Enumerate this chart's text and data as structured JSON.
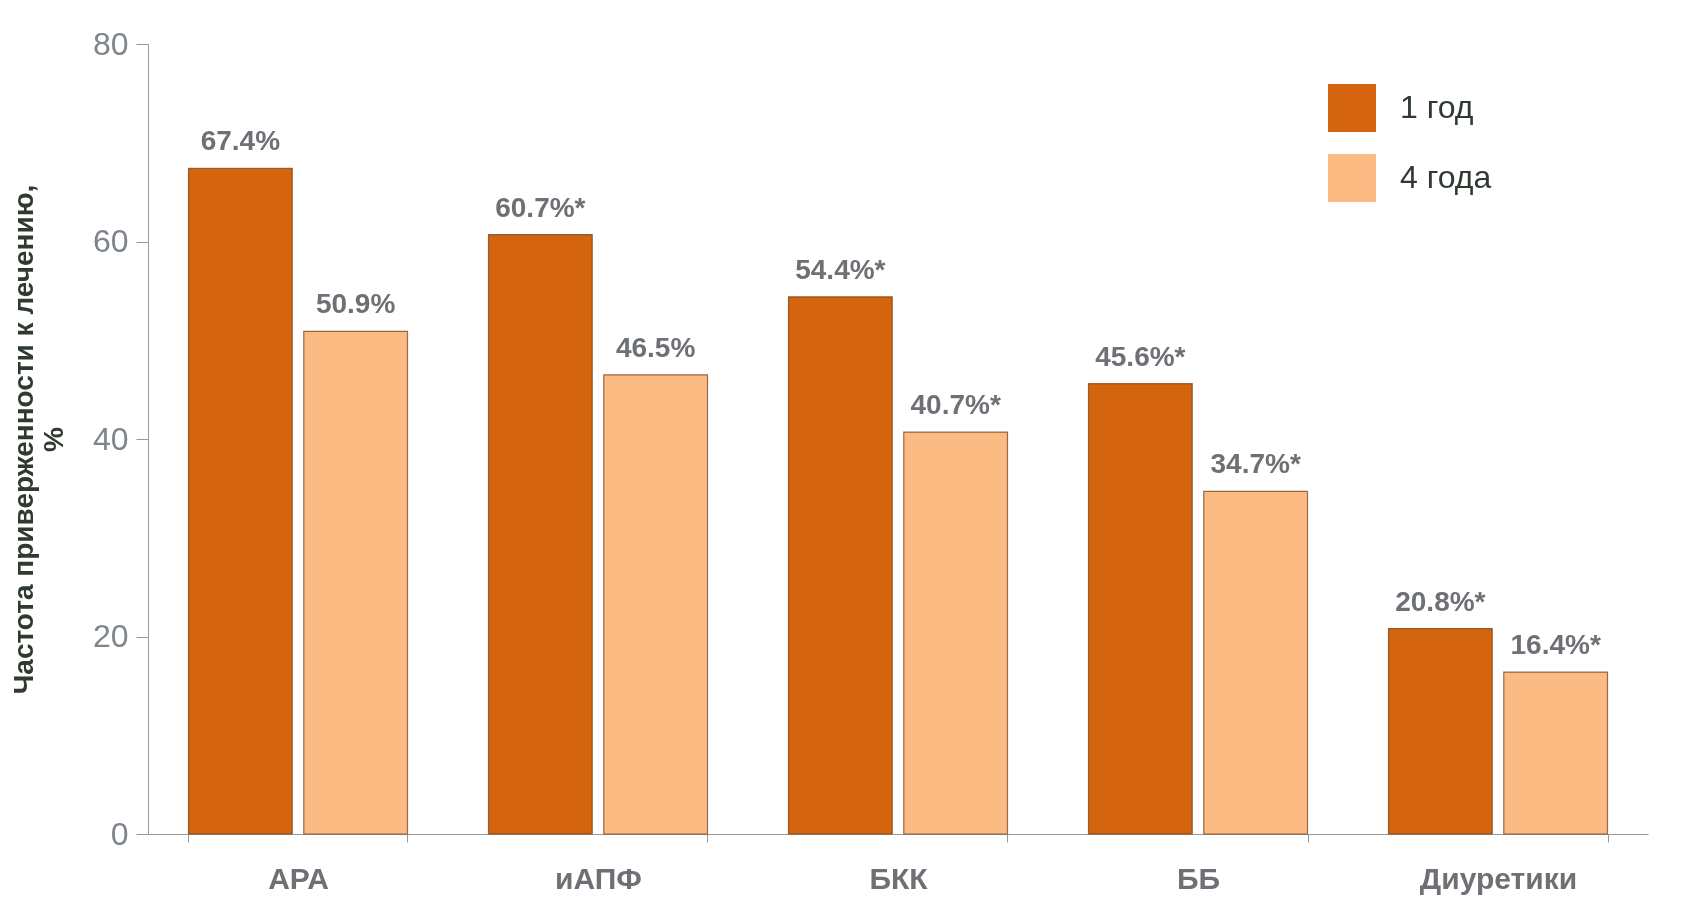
{
  "chart_data": {
    "type": "bar",
    "ylabel": "Частота приверженности к лечению,\n%",
    "categories": [
      "АРА",
      "иАПФ",
      "БКК",
      "ББ",
      "Диуретики"
    ],
    "series": [
      {
        "name": "1 год",
        "color": "#d5640f",
        "values": [
          67.4,
          60.7,
          54.4,
          45.6,
          20.8
        ],
        "value_labels": [
          "67.4%",
          "60.7%*",
          "54.4%*",
          "45.6%*",
          "20.8%*"
        ]
      },
      {
        "name": "4 года",
        "color": "#fdbb84",
        "values": [
          50.9,
          46.5,
          40.7,
          34.7,
          16.4
        ],
        "value_labels": [
          "50.9%",
          "46.5%",
          "40.7%*",
          "34.7%*",
          "16.4%*"
        ]
      }
    ],
    "ylim": [
      0,
      80
    ],
    "yticks": [
      0,
      20,
      40,
      60,
      80
    ],
    "legend": "top right"
  }
}
